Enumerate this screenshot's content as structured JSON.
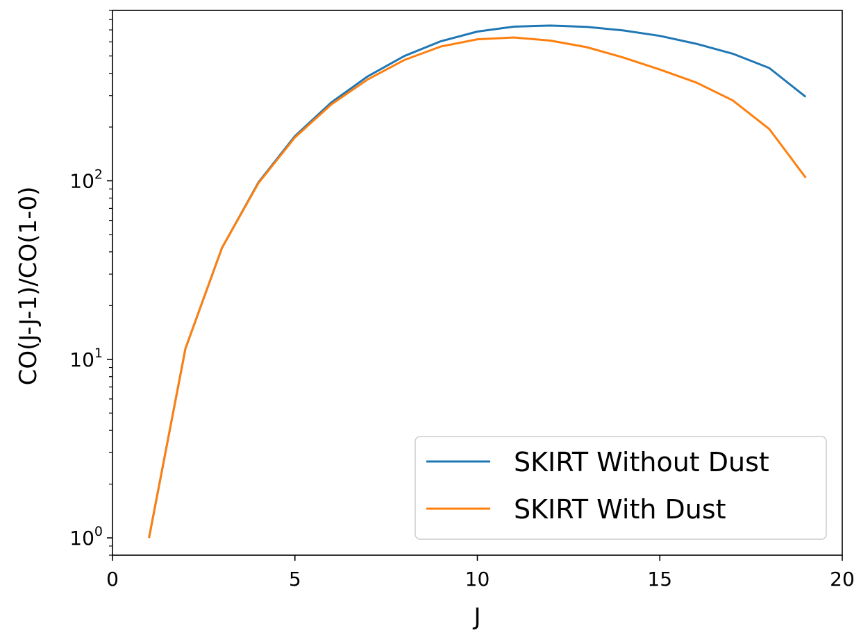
{
  "chart_data": {
    "type": "line",
    "title": "",
    "xlabel": "J",
    "ylabel": "CO(J-J-1)/CO(1-0)",
    "xlim": [
      0,
      20
    ],
    "ylim": [
      0.8,
      900
    ],
    "yscale": "log",
    "grid": false,
    "legend_position": "bottom-right",
    "x_ticks": [
      0,
      5,
      10,
      15,
      20
    ],
    "y_ticks": [
      {
        "value": 1,
        "base": "10",
        "exp": "0"
      },
      {
        "value": 10,
        "base": "10",
        "exp": "1"
      },
      {
        "value": 100,
        "base": "10",
        "exp": "2"
      }
    ],
    "x": [
      1,
      2,
      3,
      4,
      5,
      6,
      7,
      8,
      9,
      10,
      11,
      12,
      13,
      14,
      15,
      16,
      17,
      18,
      19
    ],
    "series": [
      {
        "name": "SKIRT Without Dust",
        "color": "#1f77b4",
        "values": [
          1.0,
          11.5,
          42,
          98,
          178,
          275,
          385,
          500,
          605,
          685,
          730,
          740,
          728,
          695,
          648,
          585,
          515,
          428,
          295
        ]
      },
      {
        "name": "SKIRT With Dust",
        "color": "#ff7f0e",
        "values": [
          1.0,
          11.5,
          42,
          97,
          175,
          268,
          370,
          475,
          565,
          620,
          635,
          610,
          560,
          490,
          420,
          355,
          282,
          195,
          104
        ]
      }
    ]
  }
}
